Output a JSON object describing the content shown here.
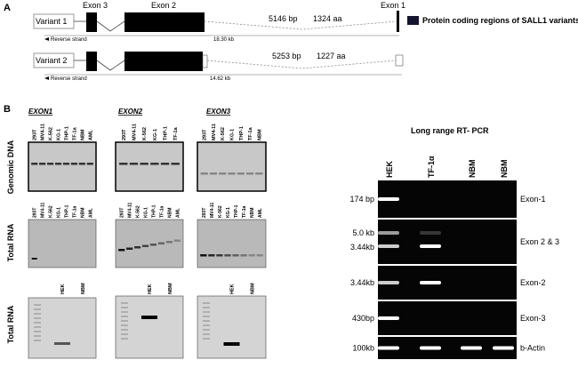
{
  "panel_a": {
    "label": "A",
    "legend": "Protein coding regions of SALL1 variants",
    "exon_labels": [
      "Exon 3",
      "Exon 2",
      "Exon 1"
    ],
    "variants": [
      {
        "name": "Variant 1",
        "length_bp": "5146 bp",
        "protein": "1324 aa",
        "strand": "Reverse strand",
        "span": "18.30 kb"
      },
      {
        "name": "Variant 2",
        "length_bp": "5253 bp",
        "protein": "1227 aa",
        "strand": "Reverse strand",
        "span": "14.62 kb"
      }
    ]
  },
  "panel_b": {
    "label": "B",
    "row_labels": [
      "Genomic DNA",
      "Total RNA",
      "Total RNA"
    ],
    "gels": [
      {
        "title": "EXON1",
        "genomic_lanes": [
          "293T",
          "MV4-11",
          "K-562",
          "KG-1",
          "THP-1",
          "TF-1a",
          "NBM",
          "AML"
        ],
        "rna_lanes": [
          "293T",
          "MV4-11",
          "K-562",
          "KG-1",
          "THP-1",
          "TF-1a",
          "NBM",
          "AML"
        ],
        "pcr_lanes": [
          "HEK",
          "NBM"
        ]
      },
      {
        "title": "EXON2",
        "genomic_lanes": [
          "293T",
          "MV4-11",
          "K-562",
          "KG-1",
          "THP-1",
          "TF-1a"
        ],
        "rna_lanes": [
          "293T",
          "MV4-11",
          "K-562",
          "KG-1",
          "THP-1",
          "TF-1a",
          "NBM",
          "AML"
        ],
        "pcr_lanes": [
          "HEK",
          "NBM"
        ]
      },
      {
        "title": "EXON3",
        "genomic_lanes": [
          "293T",
          "MV4-11",
          "K-562",
          "KG-1",
          "THP-1",
          "TF-1a",
          "NBM"
        ],
        "rna_lanes": [
          "293T",
          "MV4-11",
          "K-562",
          "KG-1",
          "THP-1",
          "TF-1a",
          "NBM",
          "AML"
        ],
        "pcr_lanes": [
          "HEK",
          "NBM"
        ]
      }
    ],
    "rt_pcr": {
      "title": "Long range RT- PCR",
      "lanes": [
        "HEK",
        "TF-1α",
        "NBM",
        "NBM"
      ],
      "rows": [
        {
          "sizes": [
            "174 bp"
          ],
          "label": "Exon-1"
        },
        {
          "sizes": [
            "5.0 kb",
            "3.44kb"
          ],
          "label": "Exon 2 & 3"
        },
        {
          "sizes": [
            "3.44kb"
          ],
          "label": "Exon-2"
        },
        {
          "sizes": [
            "430bp"
          ],
          "label": "Exon-3"
        },
        {
          "sizes": [
            "100kb"
          ],
          "label": "b-Actin"
        }
      ]
    }
  }
}
